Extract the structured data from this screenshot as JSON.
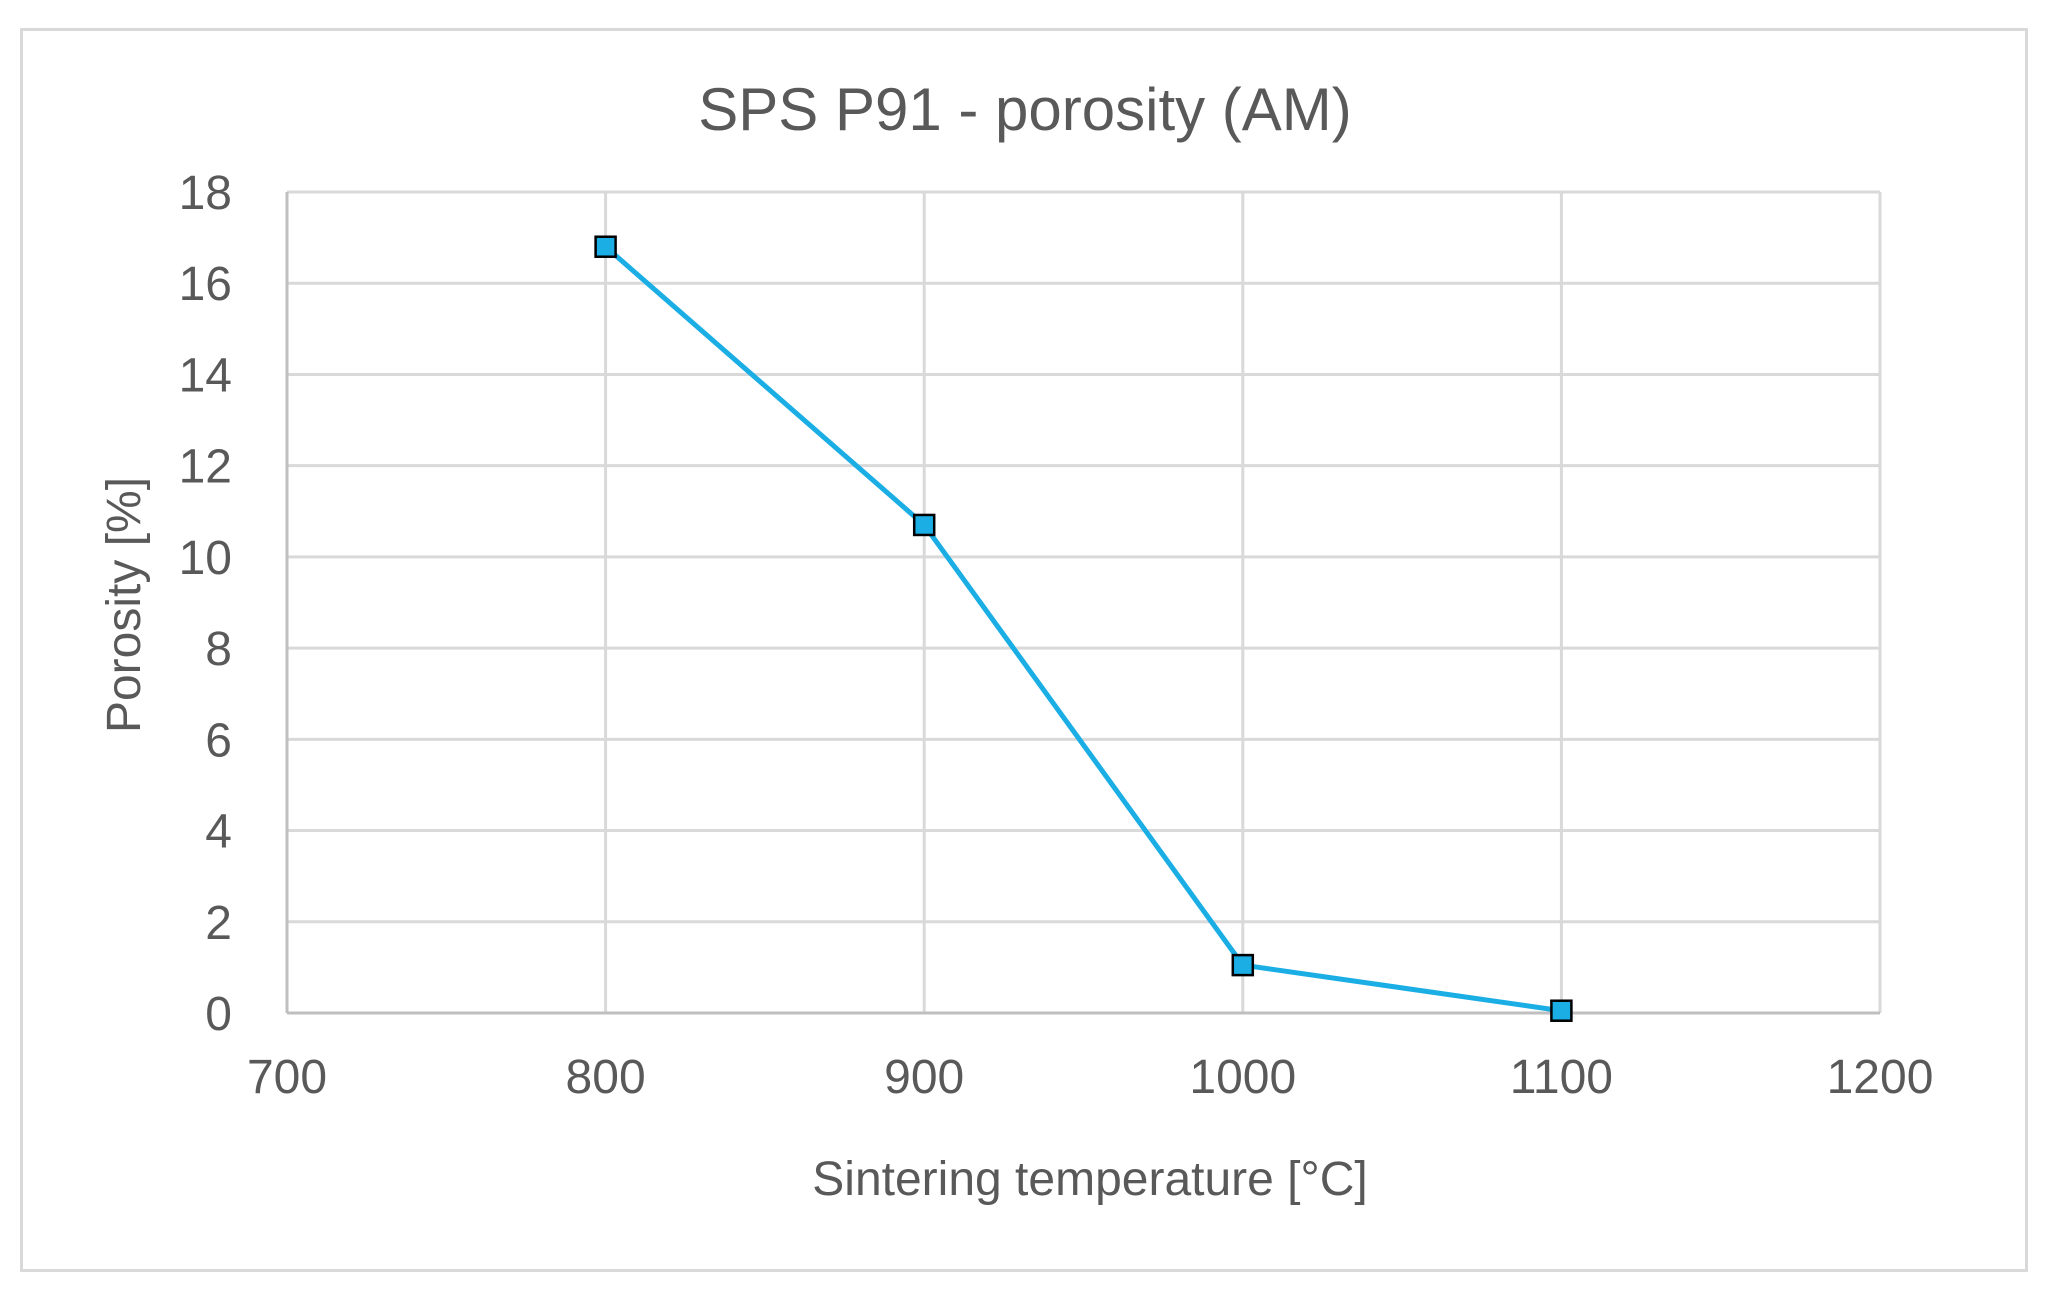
{
  "chart_data": {
    "type": "scatter",
    "title": "SPS P91 - porosity (AM)",
    "xlabel": "Sintering temperature [°C]",
    "ylabel": "Porosity [%]",
    "xlim": [
      700,
      1200
    ],
    "ylim": [
      0,
      18
    ],
    "xticks": [
      "700",
      "800",
      "900",
      "1000",
      "1100",
      "1200"
    ],
    "yticks": [
      "0",
      "2",
      "4",
      "6",
      "8",
      "10",
      "12",
      "14",
      "16",
      "18"
    ],
    "grid": true,
    "series": [
      {
        "name": "Porosity",
        "color": "#1aaee5",
        "marker": "square",
        "x": [
          800,
          900,
          1000,
          1100
        ],
        "y": [
          16.8,
          10.7,
          1.05,
          0.05
        ]
      }
    ]
  }
}
